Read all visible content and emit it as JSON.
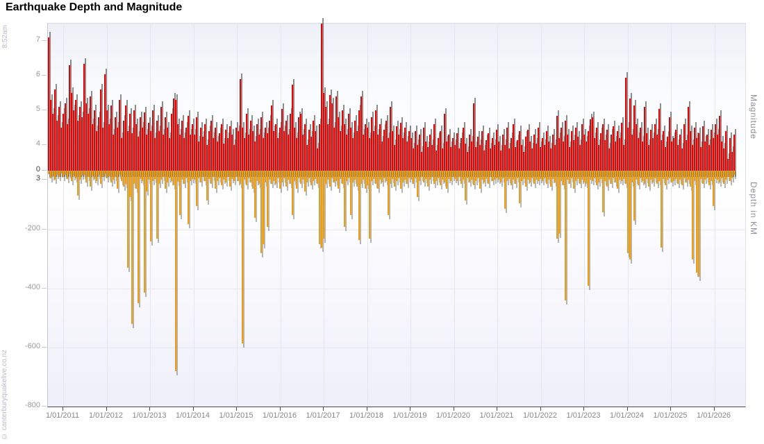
{
  "header": {
    "title": "Earthquake Depth and Magnitude",
    "time_label": "8:52am",
    "watermark": "© canterburyquakelive.co.nz"
  },
  "chart_data": {
    "type": "bar",
    "title": "Earthquake Depth and Magnitude",
    "description": "Dual overlaid bar chart: earthquake magnitude (red, upward) and focal depth in km (orange, downward) per event bucket from late 2010 to early 2026.",
    "legend": "none",
    "grid": "vertical year gridlines; horizontal depth gridlines",
    "x_axis": {
      "tick_labels": [
        "1/01/2011",
        "1/01/2012",
        "1/01/2013",
        "1/01/2014",
        "1/01/2015",
        "1/01/2016",
        "1/01/2017",
        "1/01/2018",
        "1/01/2019",
        "1/01/2020",
        "1/01/2021",
        "1/01/2022",
        "1/01/2023",
        "1/01/2024",
        "1/01/2025",
        "1/01/2026"
      ]
    },
    "y_axis_magnitude": {
      "label": "Magnitude",
      "ticks": [
        7,
        6,
        5,
        4,
        3
      ],
      "range": [
        3.2,
        7.5
      ]
    },
    "y_axis_depth": {
      "label": "Depth in KM",
      "ticks": [
        0,
        -200,
        -400,
        -600,
        -800
      ],
      "range": [
        0,
        -800
      ]
    },
    "colors": {
      "magnitude": "#ec0000",
      "magnitude_shadow": "rgba(30,30,30,0.5)",
      "depth": "#f59d00",
      "depth_shadow": "rgba(110,110,110,0.5)"
    },
    "points_format": [
      "magnitude",
      "depth_km"
    ],
    "points": [
      [
        7.1,
        12
      ],
      [
        5.3,
        25
      ],
      [
        4.9,
        18
      ],
      [
        5.6,
        30
      ],
      [
        4.7,
        15
      ],
      [
        5.1,
        22
      ],
      [
        4.5,
        10
      ],
      [
        4.9,
        20
      ],
      [
        5.2,
        15
      ],
      [
        4.6,
        28
      ],
      [
        6.3,
        12
      ],
      [
        5.5,
        35
      ],
      [
        5.0,
        18
      ],
      [
        5.3,
        25
      ],
      [
        4.7,
        85
      ],
      [
        5.1,
        30
      ],
      [
        4.8,
        16
      ],
      [
        6.35,
        14
      ],
      [
        5.2,
        40
      ],
      [
        4.9,
        22
      ],
      [
        5.4,
        55
      ],
      [
        4.6,
        18
      ],
      [
        5.0,
        28
      ],
      [
        4.4,
        35
      ],
      [
        4.8,
        15
      ],
      [
        5.6,
        45
      ],
      [
        4.5,
        20
      ],
      [
        6.05,
        12
      ],
      [
        5.0,
        25
      ],
      [
        4.6,
        18
      ],
      [
        5.15,
        40
      ],
      [
        4.3,
        30
      ],
      [
        4.8,
        22
      ],
      [
        4.5,
        60
      ],
      [
        5.3,
        15
      ],
      [
        4.2,
        35
      ],
      [
        4.7,
        55
      ],
      [
        5.15,
        45
      ],
      [
        4.4,
        330
      ],
      [
        4.9,
        90
      ],
      [
        4.35,
        520
      ],
      [
        5.0,
        45
      ],
      [
        4.6,
        60
      ],
      [
        4.25,
        450
      ],
      [
        4.8,
        28
      ],
      [
        4.5,
        35
      ],
      [
        4.95,
        415
      ],
      [
        4.3,
        70
      ],
      [
        4.65,
        30
      ],
      [
        4.4,
        240
      ],
      [
        5.0,
        35
      ],
      [
        4.2,
        28
      ],
      [
        4.7,
        230
      ],
      [
        4.4,
        45
      ],
      [
        5.1,
        30
      ],
      [
        4.3,
        20
      ],
      [
        4.8,
        60
      ],
      [
        4.5,
        40
      ],
      [
        4.2,
        25
      ],
      [
        4.9,
        35
      ],
      [
        5.35,
        50
      ],
      [
        5.3,
        680
      ],
      [
        4.6,
        38
      ],
      [
        4.3,
        150
      ],
      [
        4.7,
        30
      ],
      [
        4.2,
        45
      ],
      [
        4.5,
        25
      ],
      [
        4.85,
        180
      ],
      [
        4.3,
        35
      ],
      [
        4.6,
        28
      ],
      [
        4.3,
        30
      ],
      [
        4.8,
        120
      ],
      [
        4.1,
        25
      ],
      [
        4.5,
        40
      ],
      [
        4.25,
        20
      ],
      [
        4.6,
        35
      ],
      [
        4.0,
        100
      ],
      [
        4.4,
        28
      ],
      [
        4.7,
        45
      ],
      [
        4.2,
        22
      ],
      [
        4.5,
        60
      ],
      [
        4.1,
        35
      ],
      [
        4.35,
        25
      ],
      [
        4.6,
        50
      ],
      [
        4.05,
        30
      ],
      [
        4.45,
        40
      ],
      [
        4.2,
        20
      ],
      [
        4.55,
        55
      ],
      [
        4.3,
        28
      ],
      [
        4.0,
        35
      ],
      [
        4.5,
        22
      ],
      [
        4.4,
        35
      ],
      [
        5.9,
        45
      ],
      [
        4.5,
        585
      ],
      [
        4.2,
        30
      ],
      [
        4.9,
        50
      ],
      [
        4.3,
        25
      ],
      [
        4.7,
        40
      ],
      [
        4.4,
        60
      ],
      [
        4.1,
        160
      ],
      [
        4.6,
        35
      ],
      [
        4.3,
        45
      ],
      [
        4.8,
        280
      ],
      [
        4.2,
        250
      ],
      [
        4.5,
        40
      ],
      [
        4.35,
        190
      ],
      [
        4.7,
        30
      ],
      [
        5.15,
        45
      ],
      [
        4.4,
        35
      ],
      [
        4.6,
        45
      ],
      [
        4.2,
        25
      ],
      [
        4.5,
        60
      ],
      [
        5.05,
        40
      ],
      [
        4.4,
        25
      ],
      [
        4.7,
        55
      ],
      [
        4.3,
        30
      ],
      [
        4.9,
        45
      ],
      [
        5.75,
        150
      ],
      [
        4.5,
        35
      ],
      [
        4.2,
        60
      ],
      [
        4.8,
        25
      ],
      [
        4.9,
        45
      ],
      [
        4.3,
        30
      ],
      [
        4.6,
        70
      ],
      [
        4.0,
        40
      ],
      [
        4.45,
        25
      ],
      [
        4.25,
        50
      ],
      [
        4.7,
        35
      ],
      [
        4.4,
        28
      ],
      [
        3.9,
        45
      ],
      [
        4.6,
        250
      ],
      [
        7.5,
        260
      ],
      [
        5.5,
        230
      ],
      [
        5.1,
        45
      ],
      [
        4.6,
        30
      ],
      [
        5.45,
        55
      ],
      [
        5.2,
        25
      ],
      [
        4.5,
        40
      ],
      [
        5.4,
        35
      ],
      [
        4.8,
        60
      ],
      [
        4.4,
        28
      ],
      [
        5.0,
        45
      ],
      [
        4.6,
        190
      ],
      [
        4.3,
        35
      ],
      [
        4.9,
        25
      ],
      [
        4.5,
        150
      ],
      [
        4.2,
        40
      ],
      [
        4.7,
        30
      ],
      [
        4.4,
        55
      ],
      [
        5.0,
        235
      ],
      [
        5.4,
        45
      ],
      [
        4.3,
        30
      ],
      [
        4.6,
        60
      ],
      [
        4.5,
        50
      ],
      [
        4.2,
        230
      ],
      [
        4.8,
        35
      ],
      [
        4.4,
        28
      ],
      [
        5.0,
        45
      ],
      [
        4.3,
        60
      ],
      [
        4.6,
        30
      ],
      [
        4.1,
        40
      ],
      [
        4.45,
        25
      ],
      [
        4.7,
        35
      ],
      [
        4.2,
        150
      ],
      [
        5.1,
        45
      ],
      [
        4.4,
        28
      ],
      [
        4.0,
        55
      ],
      [
        4.55,
        35
      ],
      [
        4.3,
        25
      ],
      [
        4.65,
        60
      ],
      [
        4.2,
        40
      ],
      [
        4.5,
        30
      ],
      [
        4.1,
        45
      ],
      [
        4.4,
        25
      ],
      [
        4.2,
        30
      ],
      [
        3.9,
        45
      ],
      [
        4.4,
        25
      ],
      [
        4.0,
        90
      ],
      [
        4.3,
        35
      ],
      [
        3.8,
        20
      ],
      [
        4.5,
        40
      ],
      [
        4.1,
        28
      ],
      [
        3.95,
        55
      ],
      [
        4.3,
        30
      ],
      [
        4.0,
        22
      ],
      [
        4.6,
        45
      ],
      [
        3.85,
        35
      ],
      [
        4.2,
        25
      ],
      [
        4.4,
        50
      ],
      [
        3.9,
        30
      ],
      [
        4.9,
        40
      ],
      [
        4.1,
        60
      ],
      [
        4.3,
        28
      ],
      [
        3.95,
        35
      ],
      [
        4.2,
        22
      ],
      [
        4.0,
        28
      ],
      [
        4.35,
        35
      ],
      [
        3.9,
        22
      ],
      [
        4.2,
        45
      ],
      [
        4.5,
        30
      ],
      [
        4.05,
        100
      ],
      [
        3.8,
        25
      ],
      [
        4.3,
        40
      ],
      [
        4.1,
        30
      ],
      [
        5.2,
        50
      ],
      [
        3.95,
        35
      ],
      [
        4.25,
        25
      ],
      [
        4.0,
        60
      ],
      [
        4.4,
        30
      ],
      [
        3.85,
        40
      ],
      [
        4.15,
        28
      ],
      [
        4.35,
        45
      ],
      [
        3.9,
        22
      ],
      [
        4.2,
        35
      ],
      [
        4.0,
        30
      ],
      [
        4.45,
        25
      ],
      [
        4.1,
        30
      ],
      [
        3.85,
        40
      ],
      [
        4.3,
        25
      ],
      [
        4.0,
        130
      ],
      [
        4.5,
        35
      ],
      [
        3.9,
        28
      ],
      [
        4.2,
        50
      ],
      [
        4.6,
        30
      ],
      [
        3.95,
        45
      ],
      [
        4.15,
        25
      ],
      [
        4.4,
        110
      ],
      [
        4.0,
        35
      ],
      [
        3.8,
        28
      ],
      [
        4.25,
        55
      ],
      [
        4.45,
        30
      ],
      [
        4.1,
        40
      ],
      [
        3.9,
        25
      ],
      [
        4.3,
        45
      ],
      [
        4.05,
        30
      ],
      [
        4.5,
        35
      ],
      [
        3.95,
        28
      ],
      [
        4.2,
        35
      ],
      [
        4.0,
        25
      ],
      [
        4.4,
        45
      ],
      [
        4.1,
        30
      ],
      [
        3.9,
        55
      ],
      [
        4.3,
        28
      ],
      [
        4.0,
        40
      ],
      [
        4.85,
        230
      ],
      [
        4.2,
        215
      ],
      [
        4.5,
        35
      ],
      [
        4.1,
        50
      ],
      [
        4.7,
        440
      ],
      [
        4.3,
        30
      ],
      [
        3.95,
        45
      ],
      [
        4.4,
        25
      ],
      [
        4.15,
        60
      ],
      [
        4.5,
        35
      ],
      [
        4.25,
        28
      ],
      [
        4.0,
        45
      ],
      [
        4.6,
        30
      ],
      [
        4.3,
        40
      ],
      [
        4.1,
        45
      ],
      [
        4.4,
        390
      ],
      [
        4.75,
        30
      ],
      [
        4.8,
        35
      ],
      [
        4.2,
        25
      ],
      [
        4.5,
        50
      ],
      [
        4.0,
        40
      ],
      [
        4.35,
        28
      ],
      [
        4.6,
        140
      ],
      [
        4.15,
        35
      ],
      [
        4.45,
        55
      ],
      [
        3.9,
        30
      ],
      [
        4.3,
        45
      ],
      [
        4.55,
        25
      ],
      [
        4.1,
        40
      ],
      [
        4.4,
        60
      ],
      [
        4.2,
        30
      ],
      [
        4.65,
        35
      ],
      [
        4.0,
        28
      ],
      [
        5.95,
        45
      ],
      [
        4.5,
        280
      ],
      [
        5.35,
        300
      ],
      [
        4.3,
        40
      ],
      [
        5.15,
        170
      ],
      [
        4.6,
        30
      ],
      [
        4.2,
        50
      ],
      [
        4.5,
        25
      ],
      [
        4.1,
        35
      ],
      [
        5.1,
        45
      ],
      [
        4.35,
        28
      ],
      [
        4.0,
        55
      ],
      [
        4.45,
        30
      ],
      [
        4.2,
        40
      ],
      [
        4.6,
        25
      ],
      [
        4.3,
        45
      ],
      [
        5.05,
        35
      ],
      [
        4.15,
        260
      ],
      [
        4.4,
        28
      ],
      [
        3.95,
        50
      ],
      [
        4.25,
        30
      ],
      [
        4.8,
        25
      ],
      [
        4.1,
        40
      ],
      [
        4.2,
        35
      ],
      [
        4.45,
        28
      ],
      [
        4.0,
        45
      ],
      [
        4.3,
        30
      ],
      [
        3.9,
        50
      ],
      [
        4.6,
        25
      ],
      [
        4.15,
        40
      ],
      [
        5.1,
        30
      ],
      [
        4.4,
        55
      ],
      [
        4.0,
        300
      ],
      [
        4.5,
        35
      ],
      [
        4.2,
        345
      ],
      [
        4.35,
        360
      ],
      [
        3.95,
        28
      ],
      [
        4.55,
        45
      ],
      [
        4.1,
        30
      ],
      [
        4.3,
        25
      ],
      [
        4.0,
        50
      ],
      [
        4.45,
        35
      ],
      [
        4.2,
        120
      ],
      [
        4.6,
        28
      ],
      [
        4.3,
        30
      ],
      [
        4.85,
        40
      ],
      [
        4.1,
        25
      ],
      [
        3.9,
        45
      ],
      [
        4.4,
        30
      ],
      [
        3.6,
        20
      ],
      [
        4.2,
        35
      ],
      [
        3.8,
        25
      ],
      [
        4.3,
        15
      ]
    ]
  }
}
